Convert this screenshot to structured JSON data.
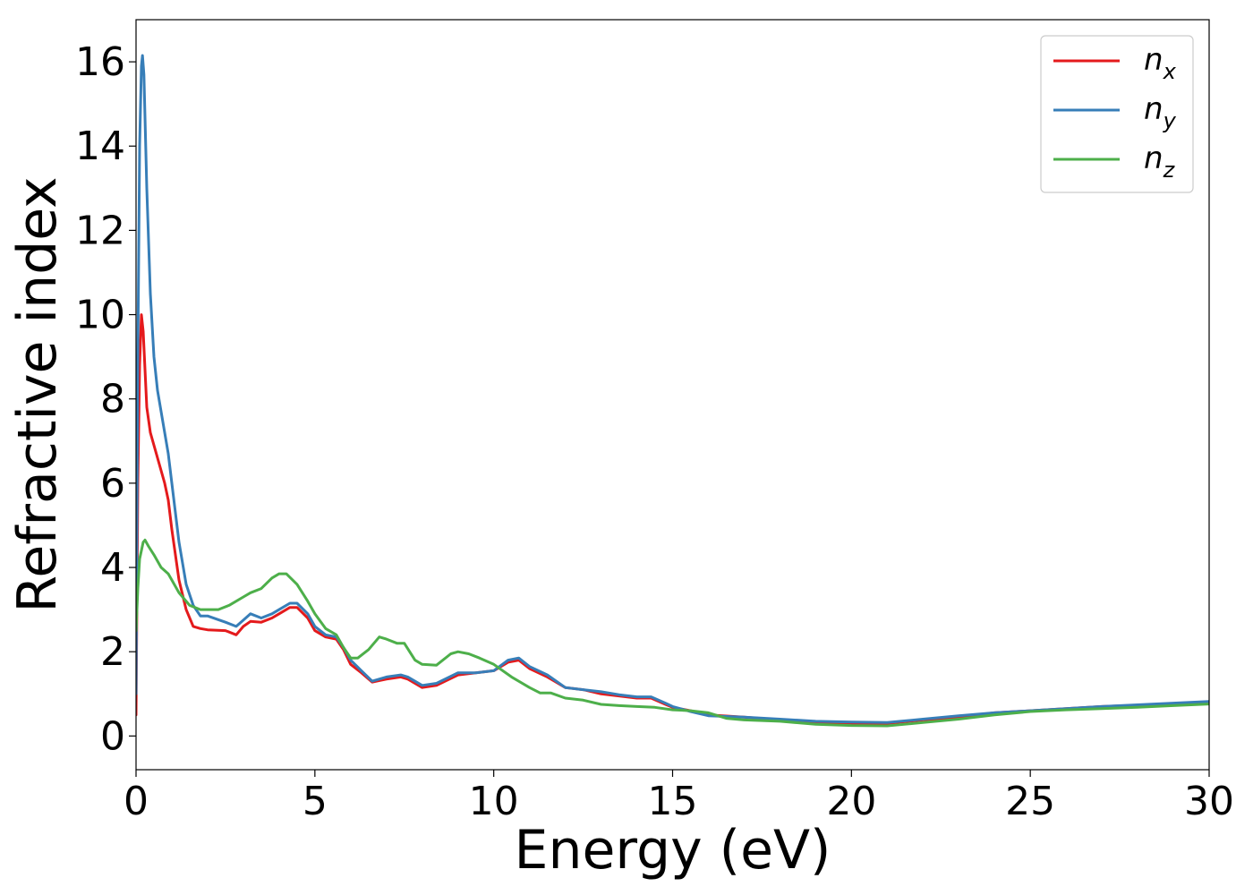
{
  "chart_data": {
    "type": "line",
    "xlabel": "Energy (eV)",
    "ylabel": "Refractive index",
    "xlim": [
      0,
      30
    ],
    "ylim": [
      -0.8,
      17
    ],
    "xticks": [
      0,
      5,
      10,
      15,
      20,
      25,
      30
    ],
    "yticks": [
      0,
      2,
      4,
      6,
      8,
      10,
      12,
      14,
      16
    ],
    "grid": false,
    "legend_position": "top-right",
    "series": [
      {
        "name": "n_x",
        "label_base": "n",
        "label_sub": "x",
        "color": "#e41a1c",
        "x": [
          0,
          0.05,
          0.1,
          0.15,
          0.2,
          0.3,
          0.4,
          0.5,
          0.6,
          0.8,
          0.9,
          1.0,
          1.2,
          1.4,
          1.6,
          1.8,
          2.0,
          2.5,
          2.8,
          3.0,
          3.2,
          3.5,
          3.8,
          4.0,
          4.3,
          4.5,
          4.8,
          5.0,
          5.3,
          5.6,
          5.8,
          6.0,
          6.3,
          6.6,
          7.0,
          7.4,
          7.6,
          8.0,
          8.4,
          9.0,
          9.5,
          10.0,
          10.4,
          10.7,
          11.0,
          11.5,
          12.0,
          12.5,
          13.0,
          13.5,
          14.0,
          14.4,
          14.8,
          15.0,
          15.5,
          16.0,
          17.0,
          18.0,
          19.0,
          20.0,
          21.0,
          22.0,
          23.0,
          24.0,
          25.0,
          26.0,
          27.0,
          28.0,
          29.0,
          30.0
        ],
        "values": [
          0.5,
          6.0,
          8.8,
          10.0,
          9.6,
          7.8,
          7.2,
          6.9,
          6.6,
          6.0,
          5.6,
          4.9,
          3.7,
          3.0,
          2.6,
          2.55,
          2.52,
          2.5,
          2.4,
          2.6,
          2.72,
          2.7,
          2.8,
          2.9,
          3.05,
          3.05,
          2.8,
          2.5,
          2.35,
          2.3,
          2.05,
          1.7,
          1.5,
          1.28,
          1.35,
          1.4,
          1.35,
          1.15,
          1.2,
          1.45,
          1.5,
          1.55,
          1.75,
          1.8,
          1.6,
          1.4,
          1.15,
          1.1,
          1.0,
          0.95,
          0.9,
          0.9,
          0.75,
          0.68,
          0.6,
          0.5,
          0.45,
          0.38,
          0.32,
          0.3,
          0.3,
          0.38,
          0.45,
          0.55,
          0.6,
          0.65,
          0.7,
          0.73,
          0.76,
          0.8
        ]
      },
      {
        "name": "n_y",
        "label_base": "n",
        "label_sub": "y",
        "color": "#377eb8",
        "x": [
          0,
          0.05,
          0.1,
          0.15,
          0.18,
          0.22,
          0.3,
          0.4,
          0.5,
          0.6,
          0.8,
          0.9,
          1.0,
          1.2,
          1.4,
          1.6,
          1.8,
          2.0,
          2.5,
          2.8,
          3.0,
          3.2,
          3.5,
          3.8,
          4.0,
          4.3,
          4.5,
          4.8,
          5.0,
          5.3,
          5.6,
          5.8,
          6.0,
          6.3,
          6.6,
          7.0,
          7.4,
          7.6,
          8.0,
          8.4,
          9.0,
          9.5,
          10.0,
          10.4,
          10.7,
          11.0,
          11.5,
          12.0,
          12.5,
          13.0,
          13.5,
          14.0,
          14.4,
          14.8,
          15.0,
          15.5,
          16.0,
          17.0,
          18.0,
          19.0,
          20.0,
          21.0,
          22.0,
          23.0,
          24.0,
          25.0,
          26.0,
          27.0,
          28.0,
          29.0,
          30.0
        ],
        "values": [
          1.0,
          9.0,
          14.0,
          15.9,
          16.15,
          15.7,
          13.0,
          10.5,
          9.0,
          8.2,
          7.2,
          6.7,
          6.0,
          4.6,
          3.6,
          3.1,
          2.85,
          2.85,
          2.7,
          2.6,
          2.75,
          2.9,
          2.8,
          2.9,
          3.0,
          3.15,
          3.15,
          2.9,
          2.6,
          2.4,
          2.35,
          2.1,
          1.8,
          1.55,
          1.3,
          1.4,
          1.45,
          1.4,
          1.2,
          1.25,
          1.5,
          1.5,
          1.55,
          1.8,
          1.85,
          1.65,
          1.45,
          1.15,
          1.1,
          1.05,
          0.98,
          0.93,
          0.93,
          0.78,
          0.7,
          0.58,
          0.48,
          0.45,
          0.4,
          0.35,
          0.33,
          0.32,
          0.4,
          0.48,
          0.55,
          0.6,
          0.65,
          0.7,
          0.74,
          0.78,
          0.82
        ]
      },
      {
        "name": "n_z",
        "label_base": "n",
        "label_sub": "z",
        "color": "#4daf4a",
        "x": [
          0,
          0.05,
          0.1,
          0.2,
          0.25,
          0.35,
          0.5,
          0.7,
          0.9,
          1.0,
          1.2,
          1.5,
          1.8,
          2.0,
          2.3,
          2.6,
          3.0,
          3.2,
          3.5,
          3.8,
          4.0,
          4.2,
          4.5,
          4.8,
          5.0,
          5.3,
          5.6,
          5.8,
          6.0,
          6.2,
          6.5,
          6.8,
          7.0,
          7.3,
          7.5,
          7.8,
          8.0,
          8.4,
          8.8,
          9.0,
          9.3,
          9.6,
          10.0,
          10.5,
          11.0,
          11.3,
          11.6,
          12.0,
          12.5,
          13.0,
          13.5,
          14.0,
          14.5,
          15.0,
          15.5,
          16.0,
          16.5,
          17.0,
          18.0,
          19.0,
          20.0,
          21.0,
          22.0,
          23.0,
          24.0,
          25.0,
          26.0,
          27.0,
          28.0,
          29.0,
          30.0
        ],
        "values": [
          2.5,
          3.5,
          4.2,
          4.6,
          4.65,
          4.5,
          4.3,
          4.0,
          3.85,
          3.7,
          3.4,
          3.1,
          3.0,
          3.0,
          3.0,
          3.1,
          3.3,
          3.4,
          3.5,
          3.75,
          3.85,
          3.85,
          3.6,
          3.2,
          2.9,
          2.55,
          2.4,
          2.1,
          1.85,
          1.85,
          2.05,
          2.35,
          2.3,
          2.2,
          2.2,
          1.8,
          1.7,
          1.68,
          1.95,
          2.0,
          1.95,
          1.85,
          1.7,
          1.4,
          1.15,
          1.02,
          1.02,
          0.9,
          0.85,
          0.75,
          0.72,
          0.7,
          0.68,
          0.62,
          0.6,
          0.55,
          0.42,
          0.38,
          0.35,
          0.28,
          0.25,
          0.24,
          0.32,
          0.4,
          0.5,
          0.58,
          0.62,
          0.65,
          0.68,
          0.72,
          0.76
        ]
      }
    ]
  }
}
